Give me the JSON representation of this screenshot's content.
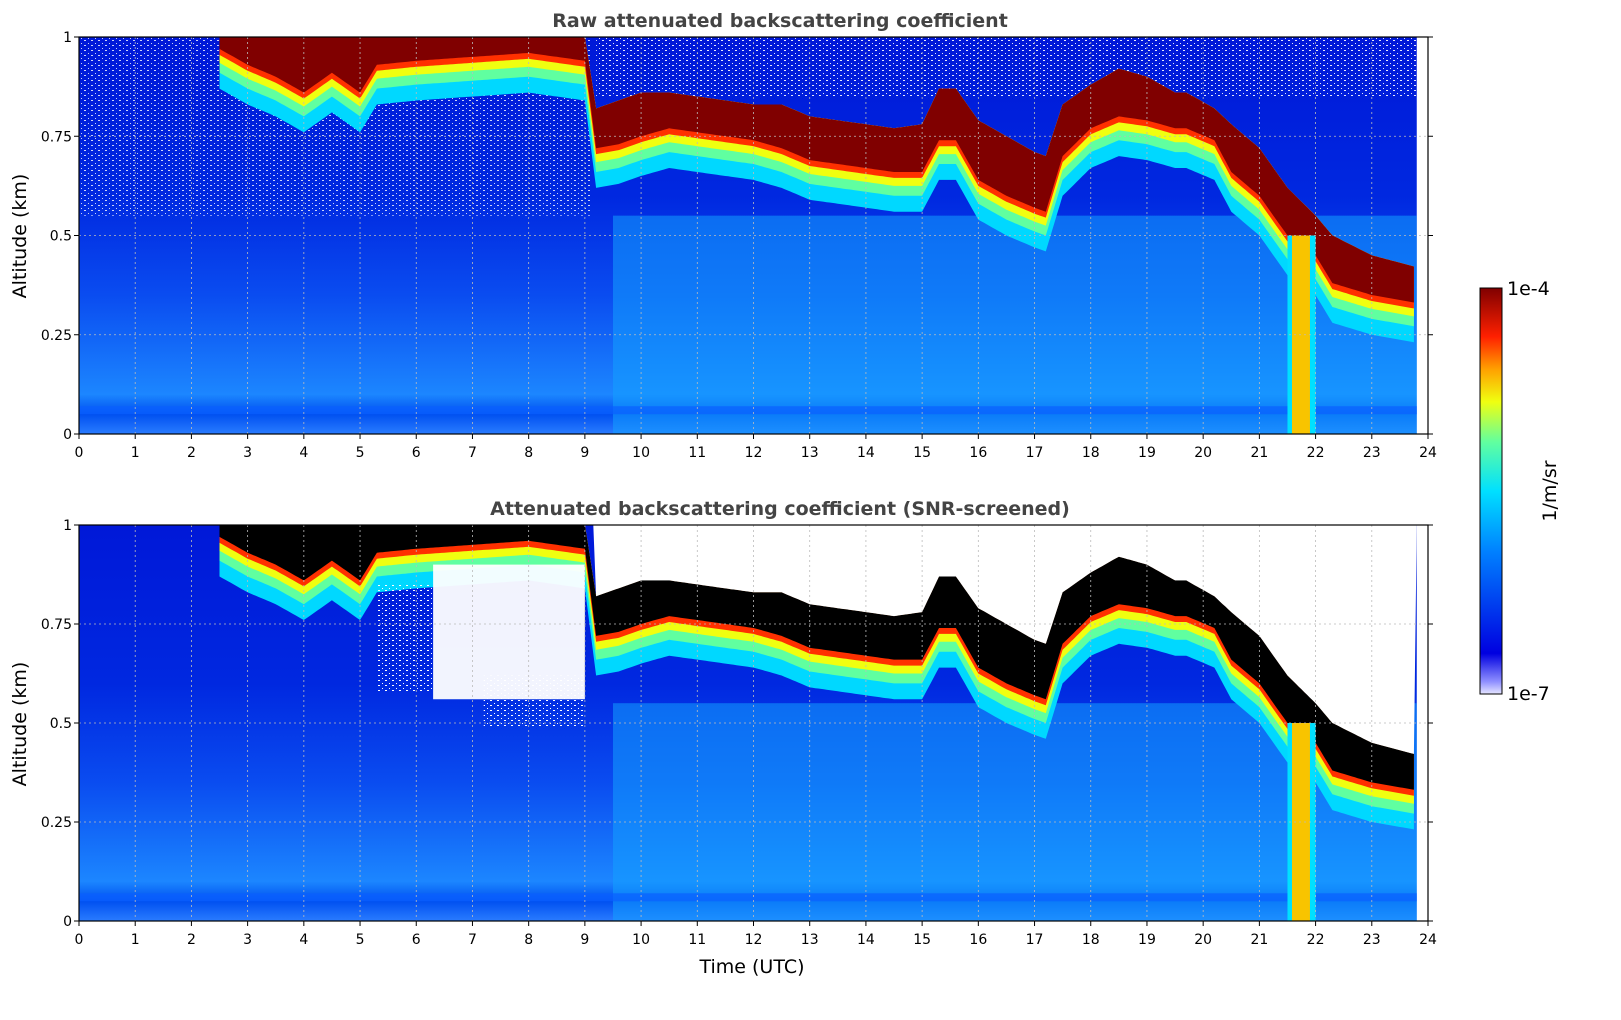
{
  "chart_data": [
    {
      "type": "heatmap",
      "title": "Raw attenuated backscattering coefficient",
      "ylabel": "Altitude (km)",
      "xlabel": "",
      "xlim": [
        0,
        24
      ],
      "ylim": [
        0,
        1
      ],
      "xticks": [
        "0",
        "1",
        "2",
        "3",
        "4",
        "5",
        "6",
        "7",
        "8",
        "9",
        "10",
        "11",
        "12",
        "13",
        "14",
        "15",
        "16",
        "17",
        "18",
        "19",
        "20",
        "21",
        "22",
        "23",
        "24"
      ],
      "yticks": [
        "0",
        "0.25",
        "0.5",
        "0.75",
        "1"
      ],
      "grid": true,
      "screened": false,
      "cloud_layer": {
        "time": [
          0,
          2.5,
          3,
          3.5,
          4,
          4.5,
          5,
          5.3,
          6,
          7,
          8,
          9,
          9.2,
          9.6,
          10,
          10.5,
          11,
          12,
          12.5,
          13,
          13.5,
          14,
          14.5,
          15,
          15.3,
          15.6,
          16,
          16.5,
          17,
          17.2,
          17.5,
          18,
          18.5,
          19,
          19.5,
          19.7,
          20.2,
          20.5,
          21,
          21.5,
          22,
          22.3,
          23,
          23.8
        ],
        "base_km": [
          null,
          0.97,
          0.93,
          0.9,
          0.86,
          0.91,
          0.86,
          0.93,
          0.94,
          0.95,
          0.96,
          0.94,
          0.72,
          0.73,
          0.75,
          0.77,
          0.76,
          0.74,
          0.72,
          0.69,
          0.68,
          0.67,
          0.66,
          0.66,
          0.74,
          0.74,
          0.64,
          0.6,
          0.57,
          0.56,
          0.7,
          0.77,
          0.8,
          0.79,
          0.77,
          0.77,
          0.74,
          0.66,
          0.6,
          0.5,
          0.45,
          0.38,
          0.35,
          0.33
        ],
        "top_km": [
          null,
          1.0,
          1.0,
          1.0,
          1.0,
          1.0,
          1.0,
          1.0,
          1.0,
          1.0,
          1.0,
          1.0,
          0.82,
          0.84,
          0.86,
          0.86,
          0.85,
          0.83,
          0.83,
          0.8,
          0.79,
          0.78,
          0.77,
          0.78,
          0.87,
          0.87,
          0.79,
          0.75,
          0.71,
          0.7,
          0.83,
          0.88,
          0.92,
          0.9,
          0.86,
          0.86,
          0.82,
          0.78,
          0.72,
          0.62,
          0.55,
          0.5,
          0.45,
          0.42
        ]
      },
      "precipitation_time": [
        21.5,
        22.0
      ]
    },
    {
      "type": "heatmap",
      "title": "Attenuated backscattering coefficient (SNR-screened)",
      "ylabel": "Altitude (km)",
      "xlabel": "Time (UTC)",
      "xlim": [
        0,
        24
      ],
      "ylim": [
        0,
        1
      ],
      "xticks": [
        "0",
        "1",
        "2",
        "3",
        "4",
        "5",
        "6",
        "7",
        "8",
        "9",
        "10",
        "11",
        "12",
        "13",
        "14",
        "15",
        "16",
        "17",
        "18",
        "19",
        "20",
        "21",
        "22",
        "23",
        "24"
      ],
      "yticks": [
        "0",
        "0.25",
        "0.5",
        "0.75",
        "1"
      ],
      "grid": true,
      "screened": true,
      "saturated_color": "#000000",
      "screened_region": {
        "time": [
          5.3,
          9.1
        ],
        "altitude_km": [
          0.48,
          0.95
        ]
      }
    }
  ],
  "colorbar": {
    "label": "1/m/sr",
    "max_label": "1e-4",
    "min_label": "1e-7",
    "colormap": "jet",
    "scale": "log"
  },
  "colors": {
    "jet_low": "#0000b0",
    "jet_mid": "#00c8ff",
    "jet_high": "#800000",
    "background": "#ffffff"
  }
}
